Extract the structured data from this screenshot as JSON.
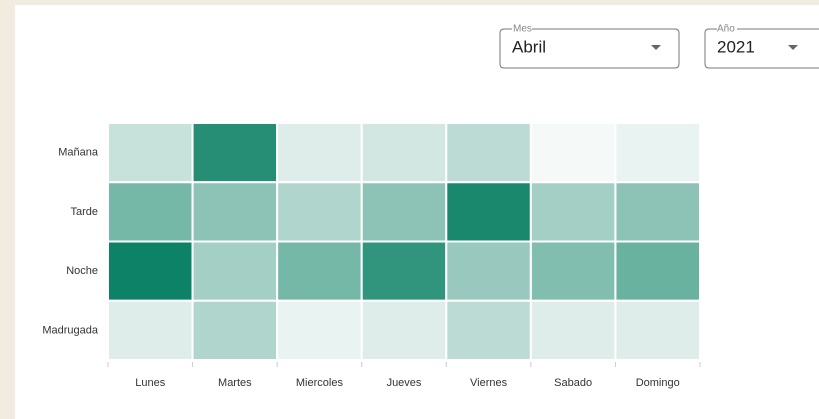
{
  "filters": [
    {
      "label": "Mes",
      "value": "Abril"
    },
    {
      "label": "Año",
      "value": "2021"
    }
  ],
  "chart_data": {
    "type": "heatmap",
    "x_categories": [
      "Lunes",
      "Martes",
      "Miercoles",
      "Jueves",
      "Viernes",
      "Sabado",
      "Domingo"
    ],
    "y_categories": [
      "Mañana",
      "Tarde",
      "Noche",
      "Madrugada"
    ],
    "values": [
      [
        2,
        9,
        1,
        1.5,
        2.5,
        0,
        0.5
      ],
      [
        5.5,
        4.5,
        3,
        4.5,
        9.5,
        3.5,
        4.5
      ],
      [
        10,
        3.5,
        5.5,
        8.5,
        4,
        5,
        6
      ],
      [
        1,
        3,
        0.5,
        1,
        2.5,
        1,
        1
      ]
    ],
    "zlim": [
      0,
      10
    ],
    "colors": [
      "#f5f9f8",
      "#0e8266"
    ]
  }
}
